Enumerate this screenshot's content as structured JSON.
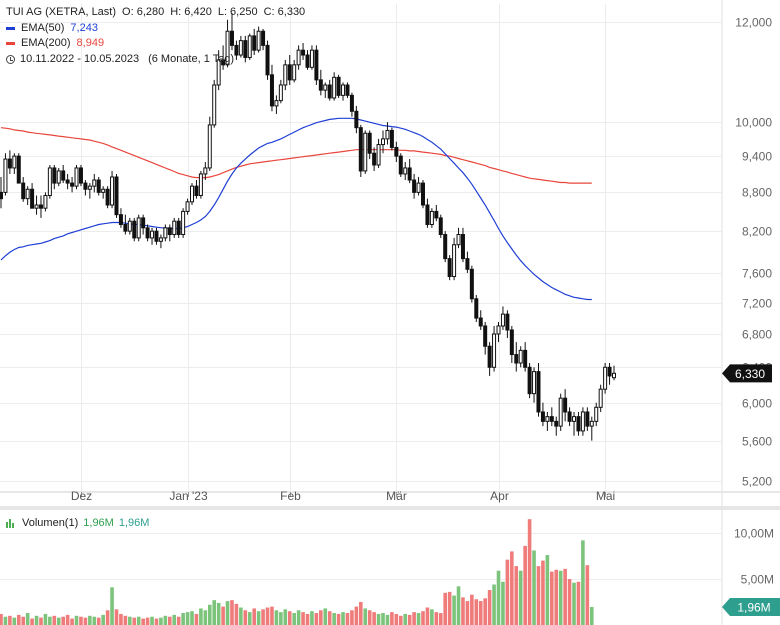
{
  "header": {
    "symbol_label": "TUI AG (XETRA, Last)",
    "open_label": "O: 6,280",
    "high_label": "H: 6,420",
    "low_label": "L: 6,250",
    "close_label": "C: 6,330",
    "ema50_label": "EMA(50)",
    "ema50_value": "7,243",
    "ema200_label": "EMA(200)",
    "ema200_value": "8,949",
    "range_label": "10.11.2022 - 10.05.2023",
    "range_detail": "(6 Monate, 1 Tag)",
    "volume_label": "Volumen(1)",
    "volume_value_a": "1,96M",
    "volume_value_b": "1,96M"
  },
  "colors": {
    "ema50": "#1f3fd6",
    "ema200": "#e8463c",
    "candle": "#111111",
    "volume_up": "#7cc47c",
    "volume_down": "#ef7b7b",
    "last_price_badge": "#111111",
    "volume_badge": "#2e9e8e"
  },
  "chart_data": {
    "type": "candlestick",
    "y_scale": "log",
    "ylim": [
      5.1,
      12.4
    ],
    "price_ticks": [
      "12,000",
      "10,000",
      "9,400",
      "8,800",
      "8,200",
      "7,600",
      "7,200",
      "6,800",
      "6,400",
      "6,000",
      "5,600",
      "5,200"
    ],
    "price_tick_values": [
      12.0,
      10.0,
      9.4,
      8.8,
      8.2,
      7.6,
      7.2,
      6.8,
      6.4,
      6.0,
      5.6,
      5.2
    ],
    "x_tick_labels": [
      "Dez",
      "Jan '23",
      "Feb",
      "Mär",
      "Apr",
      "Mai"
    ],
    "x_tick_bar_index": [
      18,
      42,
      65,
      89,
      112,
      136
    ],
    "last_price": "6,330",
    "last_price_value": 6.33,
    "candles": [
      [
        8.8,
        9.05,
        8.55,
        8.7
      ],
      [
        8.8,
        9.45,
        8.75,
        9.35
      ],
      [
        9.35,
        9.5,
        9.1,
        9.2
      ],
      [
        9.2,
        9.45,
        9.1,
        9.4
      ],
      [
        9.4,
        9.45,
        8.95,
        8.95
      ],
      [
        8.95,
        9.05,
        8.65,
        8.7
      ],
      [
        8.7,
        8.9,
        8.6,
        8.85
      ],
      [
        8.85,
        8.95,
        8.55,
        8.55
      ],
      [
        8.55,
        8.75,
        8.45,
        8.6
      ],
      [
        8.6,
        8.75,
        8.4,
        8.55
      ],
      [
        8.55,
        8.8,
        8.5,
        8.75
      ],
      [
        8.75,
        9.25,
        8.7,
        9.2
      ],
      [
        9.2,
        9.25,
        8.85,
        8.95
      ],
      [
        8.95,
        9.2,
        8.9,
        9.15
      ],
      [
        9.15,
        9.25,
        8.95,
        9.0
      ],
      [
        9.0,
        9.1,
        8.85,
        8.95
      ],
      [
        8.95,
        9.05,
        8.8,
        8.9
      ],
      [
        8.9,
        9.25,
        8.85,
        9.2
      ],
      [
        9.2,
        9.25,
        8.9,
        8.95
      ],
      [
        8.95,
        9.0,
        8.75,
        8.85
      ],
      [
        8.85,
        8.95,
        8.7,
        8.9
      ],
      [
        8.9,
        9.1,
        8.8,
        9.0
      ],
      [
        9.0,
        9.05,
        8.75,
        8.8
      ],
      [
        8.8,
        8.9,
        8.7,
        8.85
      ],
      [
        8.85,
        8.9,
        8.55,
        8.6
      ],
      [
        8.6,
        9.15,
        8.55,
        9.05
      ],
      [
        9.05,
        9.1,
        8.4,
        8.45
      ],
      [
        8.45,
        8.55,
        8.25,
        8.3
      ],
      [
        8.3,
        8.45,
        8.15,
        8.2
      ],
      [
        8.2,
        8.4,
        8.15,
        8.35
      ],
      [
        8.35,
        8.4,
        8.05,
        8.1
      ],
      [
        8.1,
        8.45,
        8.05,
        8.4
      ],
      [
        8.4,
        8.45,
        8.15,
        8.25
      ],
      [
        8.25,
        8.3,
        8.05,
        8.1
      ],
      [
        8.1,
        8.25,
        8.0,
        8.2
      ],
      [
        8.2,
        8.25,
        8.0,
        8.05
      ],
      [
        8.05,
        8.15,
        7.95,
        8.1
      ],
      [
        8.1,
        8.3,
        8.05,
        8.25
      ],
      [
        8.25,
        8.3,
        8.05,
        8.15
      ],
      [
        8.15,
        8.4,
        8.1,
        8.35
      ],
      [
        8.35,
        8.4,
        8.1,
        8.15
      ],
      [
        8.15,
        8.55,
        8.1,
        8.5
      ],
      [
        8.5,
        8.7,
        8.45,
        8.65
      ],
      [
        8.65,
        8.95,
        8.6,
        8.9
      ],
      [
        8.9,
        9.0,
        8.7,
        8.75
      ],
      [
        8.75,
        9.15,
        8.7,
        9.1
      ],
      [
        9.1,
        9.3,
        9.0,
        9.2
      ],
      [
        9.2,
        10.1,
        9.15,
        9.95
      ],
      [
        9.95,
        10.8,
        9.9,
        10.7
      ],
      [
        10.7,
        11.4,
        10.6,
        11.2
      ],
      [
        11.2,
        11.5,
        11.0,
        11.1
      ],
      [
        11.1,
        12.05,
        11.05,
        11.8
      ],
      [
        11.8,
        12.2,
        11.4,
        11.5
      ],
      [
        11.5,
        11.6,
        11.2,
        11.3
      ],
      [
        11.3,
        11.7,
        11.25,
        11.6
      ],
      [
        11.6,
        11.7,
        11.15,
        11.25
      ],
      [
        11.25,
        11.75,
        11.2,
        11.7
      ],
      [
        11.7,
        11.85,
        11.3,
        11.4
      ],
      [
        11.4,
        11.9,
        11.35,
        11.8
      ],
      [
        11.8,
        11.85,
        11.4,
        11.5
      ],
      [
        11.5,
        11.6,
        10.8,
        10.9
      ],
      [
        10.9,
        11.1,
        10.2,
        10.3
      ],
      [
        10.3,
        10.5,
        10.15,
        10.4
      ],
      [
        10.4,
        10.8,
        10.35,
        10.7
      ],
      [
        10.7,
        11.2,
        10.6,
        11.1
      ],
      [
        11.1,
        11.3,
        10.7,
        10.8
      ],
      [
        10.8,
        11.2,
        10.75,
        11.1
      ],
      [
        11.1,
        11.5,
        11.0,
        11.4
      ],
      [
        11.4,
        11.55,
        11.2,
        11.3
      ],
      [
        11.3,
        11.4,
        11.0,
        11.05
      ],
      [
        11.05,
        11.5,
        11.0,
        11.4
      ],
      [
        11.4,
        11.5,
        10.7,
        10.8
      ],
      [
        10.8,
        11.0,
        10.5,
        10.6
      ],
      [
        10.6,
        10.75,
        10.45,
        10.7
      ],
      [
        10.7,
        10.8,
        10.4,
        10.45
      ],
      [
        10.45,
        10.95,
        10.4,
        10.85
      ],
      [
        10.85,
        10.9,
        10.45,
        10.5
      ],
      [
        10.5,
        10.75,
        10.4,
        10.7
      ],
      [
        10.7,
        10.75,
        10.45,
        10.5
      ],
      [
        10.5,
        10.55,
        10.1,
        10.2
      ],
      [
        10.2,
        10.3,
        9.8,
        9.9
      ],
      [
        9.9,
        9.95,
        9.05,
        9.15
      ],
      [
        9.15,
        9.85,
        9.1,
        9.8
      ],
      [
        9.8,
        9.85,
        9.35,
        9.45
      ],
      [
        9.45,
        9.55,
        9.15,
        9.25
      ],
      [
        9.25,
        9.7,
        9.2,
        9.6
      ],
      [
        9.6,
        9.85,
        9.45,
        9.7
      ],
      [
        9.7,
        10.0,
        9.6,
        9.85
      ],
      [
        9.85,
        9.9,
        9.5,
        9.55
      ],
      [
        9.55,
        9.65,
        9.3,
        9.4
      ],
      [
        9.4,
        9.45,
        9.05,
        9.1
      ],
      [
        9.1,
        9.3,
        9.0,
        9.2
      ],
      [
        9.2,
        9.35,
        8.95,
        9.0
      ],
      [
        9.0,
        9.1,
        8.7,
        8.8
      ],
      [
        8.8,
        9.05,
        8.75,
        8.95
      ],
      [
        8.95,
        9.0,
        8.55,
        8.6
      ],
      [
        8.6,
        8.7,
        8.25,
        8.3
      ],
      [
        8.3,
        8.55,
        8.25,
        8.5
      ],
      [
        8.5,
        8.6,
        8.35,
        8.4
      ],
      [
        8.4,
        8.45,
        8.1,
        8.15
      ],
      [
        8.15,
        8.2,
        7.75,
        7.8
      ],
      [
        7.8,
        7.85,
        7.5,
        7.55
      ],
      [
        7.55,
        8.1,
        7.5,
        8.0
      ],
      [
        8.0,
        8.25,
        7.95,
        8.15
      ],
      [
        8.15,
        8.25,
        7.75,
        7.8
      ],
      [
        7.8,
        7.9,
        7.6,
        7.65
      ],
      [
        7.65,
        7.7,
        7.2,
        7.25
      ],
      [
        7.25,
        7.3,
        6.95,
        7.0
      ],
      [
        7.0,
        7.1,
        6.85,
        6.9
      ],
      [
        6.9,
        6.95,
        6.55,
        6.65
      ],
      [
        6.65,
        6.7,
        6.3,
        6.4
      ],
      [
        6.4,
        6.9,
        6.35,
        6.8
      ],
      [
        6.8,
        6.95,
        6.7,
        6.9
      ],
      [
        6.9,
        7.15,
        6.85,
        7.05
      ],
      [
        7.05,
        7.1,
        6.75,
        6.85
      ],
      [
        6.85,
        6.9,
        6.45,
        6.55
      ],
      [
        6.55,
        6.7,
        6.35,
        6.45
      ],
      [
        6.45,
        6.65,
        6.4,
        6.6
      ],
      [
        6.6,
        6.7,
        6.35,
        6.4
      ],
      [
        6.4,
        6.45,
        6.05,
        6.1
      ],
      [
        6.1,
        6.4,
        6.0,
        6.35
      ],
      [
        6.35,
        6.45,
        5.85,
        5.9
      ],
      [
        5.9,
        6.0,
        5.75,
        5.8
      ],
      [
        5.8,
        5.9,
        5.7,
        5.85
      ],
      [
        5.85,
        5.95,
        5.75,
        5.8
      ],
      [
        5.8,
        5.85,
        5.65,
        5.75
      ],
      [
        5.75,
        6.1,
        5.7,
        6.05
      ],
      [
        6.05,
        6.15,
        5.8,
        5.9
      ],
      [
        5.9,
        5.95,
        5.75,
        5.8
      ],
      [
        5.8,
        5.9,
        5.65,
        5.85
      ],
      [
        5.85,
        5.9,
        5.65,
        5.7
      ],
      [
        5.7,
        5.95,
        5.65,
        5.9
      ],
      [
        5.9,
        5.95,
        5.7,
        5.75
      ],
      [
        5.75,
        5.85,
        5.6,
        5.8
      ],
      [
        5.8,
        6.0,
        5.75,
        5.95
      ],
      [
        5.95,
        6.2,
        5.9,
        6.15
      ],
      [
        6.15,
        6.45,
        6.1,
        6.4
      ],
      [
        6.4,
        6.45,
        6.2,
        6.3
      ],
      [
        6.28,
        6.42,
        6.25,
        6.33
      ]
    ],
    "ema50": [
      7.78,
      7.84,
      7.89,
      7.93,
      7.96,
      7.97,
      7.99,
      8.0,
      8.01,
      8.02,
      8.04,
      8.06,
      8.09,
      8.11,
      8.13,
      8.16,
      8.18,
      8.2,
      8.22,
      8.24,
      8.26,
      8.28,
      8.3,
      8.31,
      8.32,
      8.33,
      8.33,
      8.33,
      8.32,
      8.31,
      8.3,
      8.3,
      8.29,
      8.28,
      8.27,
      8.26,
      8.25,
      8.25,
      8.24,
      8.24,
      8.24,
      8.25,
      8.27,
      8.3,
      8.33,
      8.37,
      8.42,
      8.5,
      8.6,
      8.72,
      8.85,
      8.98,
      9.1,
      9.2,
      9.28,
      9.35,
      9.42,
      9.48,
      9.54,
      9.58,
      9.62,
      9.64,
      9.67,
      9.7,
      9.74,
      9.78,
      9.82,
      9.86,
      9.9,
      9.93,
      9.96,
      9.99,
      10.01,
      10.03,
      10.05,
      10.06,
      10.07,
      10.07,
      10.07,
      10.07,
      10.06,
      10.04,
      10.02,
      10.0,
      9.98,
      9.96,
      9.94,
      9.93,
      9.92,
      9.91,
      9.89,
      9.87,
      9.84,
      9.81,
      9.78,
      9.74,
      9.69,
      9.64,
      9.58,
      9.52,
      9.44,
      9.36,
      9.28,
      9.2,
      9.12,
      9.03,
      8.93,
      8.82,
      8.71,
      8.6,
      8.48,
      8.36,
      8.24,
      8.13,
      8.03,
      7.94,
      7.85,
      7.77,
      7.7,
      7.64,
      7.58,
      7.53,
      7.48,
      7.44,
      7.4,
      7.37,
      7.34,
      7.31,
      7.29,
      7.27,
      7.26,
      7.25,
      7.24,
      7.24
    ],
    "ema200": [
      9.9,
      9.89,
      9.88,
      9.86,
      9.85,
      9.84,
      9.82,
      9.81,
      9.8,
      9.79,
      9.78,
      9.77,
      9.76,
      9.75,
      9.74,
      9.73,
      9.72,
      9.71,
      9.7,
      9.69,
      9.68,
      9.66,
      9.64,
      9.62,
      9.59,
      9.56,
      9.53,
      9.5,
      9.47,
      9.44,
      9.41,
      9.38,
      9.35,
      9.32,
      9.29,
      9.26,
      9.23,
      9.2,
      9.17,
      9.14,
      9.11,
      9.09,
      9.07,
      9.05,
      9.04,
      9.04,
      9.04,
      9.05,
      9.07,
      9.09,
      9.12,
      9.15,
      9.18,
      9.21,
      9.23,
      9.25,
      9.27,
      9.28,
      9.29,
      9.3,
      9.31,
      9.32,
      9.33,
      9.34,
      9.35,
      9.36,
      9.37,
      9.38,
      9.39,
      9.4,
      9.41,
      9.42,
      9.43,
      9.44,
      9.45,
      9.46,
      9.47,
      9.48,
      9.49,
      9.5,
      9.51,
      9.51,
      9.51,
      9.51,
      9.51,
      9.51,
      9.51,
      9.51,
      9.51,
      9.51,
      9.5,
      9.5,
      9.49,
      9.49,
      9.48,
      9.47,
      9.46,
      9.45,
      9.44,
      9.43,
      9.41,
      9.4,
      9.38,
      9.36,
      9.34,
      9.32,
      9.3,
      9.28,
      9.26,
      9.24,
      9.21,
      9.19,
      9.17,
      9.15,
      9.13,
      9.11,
      9.09,
      9.07,
      9.05,
      9.03,
      9.02,
      9.01,
      9.0,
      8.99,
      8.98,
      8.97,
      8.96,
      8.96,
      8.95,
      8.95,
      8.95,
      8.95,
      8.95,
      8.95
    ],
    "volume_ticks": [
      "10,00M",
      "5,00M"
    ],
    "volume_tick_values": [
      10.0,
      5.0
    ],
    "volume_ylim": [
      0,
      12.5
    ],
    "last_volume": "1,96M",
    "volume_millions": [
      1.2,
      0.9,
      1.0,
      0.8,
      1.1,
      0.9,
      1.3,
      0.7,
      1.0,
      0.8,
      1.2,
      0.9,
      1.0,
      0.8,
      0.9,
      1.1,
      0.7,
      1.0,
      0.9,
      0.8,
      1.0,
      0.9,
      0.8,
      1.1,
      1.6,
      4.1,
      1.7,
      1.2,
      1.0,
      0.9,
      0.8,
      0.9,
      0.7,
      0.8,
      0.9,
      0.7,
      0.8,
      1.0,
      0.9,
      1.1,
      0.9,
      1.3,
      1.4,
      1.5,
      1.2,
      1.8,
      1.6,
      2.2,
      2.7,
      2.4,
      2.0,
      2.6,
      2.7,
      2.3,
      1.9,
      1.6,
      1.4,
      1.8,
      1.5,
      1.7,
      1.9,
      2.0,
      1.6,
      1.4,
      1.7,
      1.5,
      1.3,
      1.6,
      1.4,
      1.2,
      1.5,
      1.3,
      1.6,
      1.8,
      1.5,
      1.3,
      1.2,
      1.4,
      1.3,
      1.6,
      2.0,
      2.5,
      1.8,
      1.6,
      1.4,
      1.2,
      1.3,
      1.1,
      1.4,
      1.2,
      1.0,
      1.2,
      1.1,
      1.4,
      1.3,
      1.5,
      1.9,
      1.7,
      1.4,
      1.3,
      3.5,
      3.6,
      3.2,
      4.2,
      3.0,
      2.6,
      3.3,
      2.8,
      2.6,
      2.9,
      3.8,
      4.4,
      5.9,
      4.7,
      7.1,
      8.0,
      6.4,
      5.9,
      8.6,
      11.5,
      8.1,
      6.4,
      7.0,
      7.6,
      5.8,
      6.0,
      5.9,
      6.1,
      5.0,
      4.6,
      4.7,
      9.2,
      6.5,
      1.96
    ]
  }
}
